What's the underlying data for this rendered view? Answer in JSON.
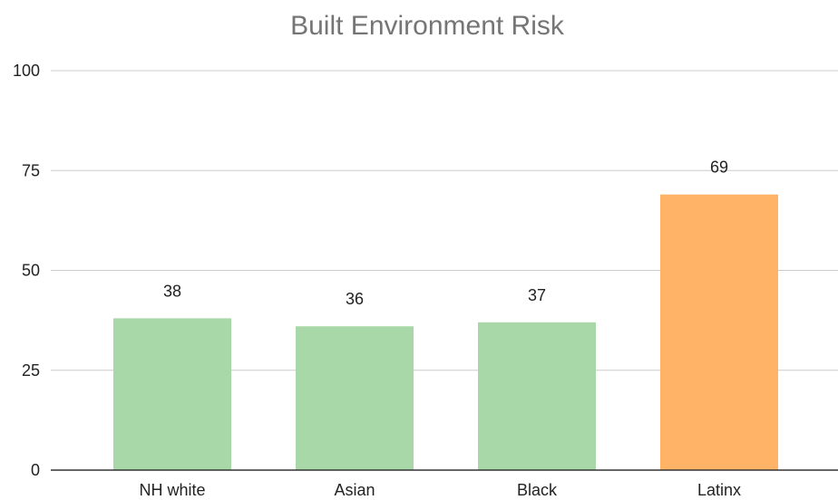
{
  "chart_data": {
    "type": "bar",
    "title": "Built Environment Risk",
    "xlabel": "",
    "ylabel": "",
    "categories": [
      "NH white",
      "Asian",
      "Black",
      "Latinx"
    ],
    "values": [
      38,
      36,
      37,
      69
    ],
    "data_labels": [
      "38",
      "36",
      "37",
      "69"
    ],
    "ylim": [
      0,
      100
    ],
    "yticks": [
      0,
      25,
      50,
      75,
      100
    ],
    "ytick_labels": [
      "0",
      "25",
      "50",
      "75",
      "100"
    ],
    "grid": true,
    "legend": "none",
    "colors": {
      "default_bar": "#a8d8a8",
      "highlight_bar": "#ffb366",
      "gridline": "#cccccc",
      "axis": "#333333"
    },
    "highlight_category": "Latinx"
  }
}
